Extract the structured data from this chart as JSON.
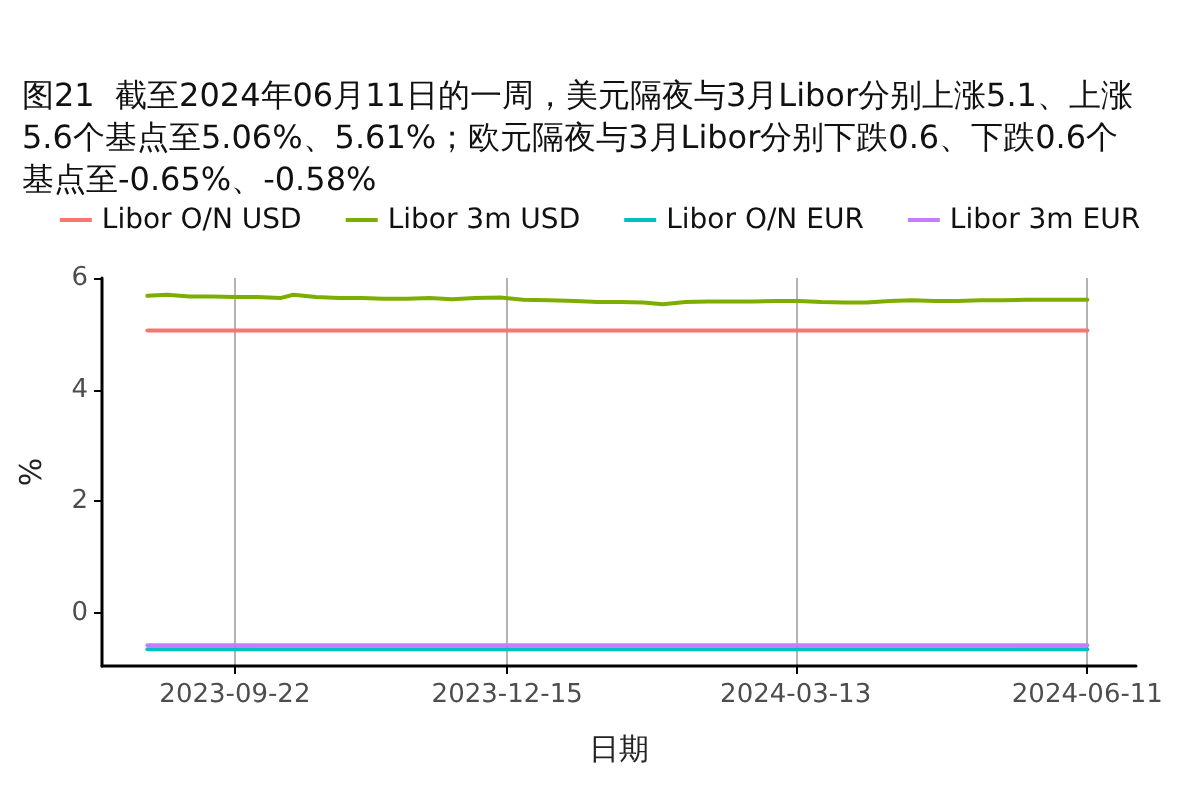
{
  "chart_data": {
    "type": "line",
    "title": "图21  截至2024年06月11日的一周，美元隔夜与3月Libor分别上涨5.1、上涨5.6个基点至5.06%、5.61%；欧元隔夜与3月Libor分别下跌0.6、下跌0.6个基点至-0.65%、-0.58%",
    "xlabel": "日期",
    "ylabel": "%",
    "series": [
      {
        "name": "Libor O/N USD",
        "color": "#f8766d",
        "x": [
          "2023-08-26",
          "2023-12-01",
          "2024-03-01",
          "2024-06-11"
        ],
        "values": [
          5.06,
          5.06,
          5.06,
          5.06
        ]
      },
      {
        "name": "Libor 3m USD",
        "color": "#7cae00",
        "x": [
          "2023-08-26",
          "2023-09-01",
          "2023-09-08",
          "2023-09-15",
          "2023-09-22",
          "2023-09-29",
          "2023-10-06",
          "2023-10-10",
          "2023-10-17",
          "2023-10-24",
          "2023-10-31",
          "2023-11-07",
          "2023-11-14",
          "2023-11-21",
          "2023-11-28",
          "2023-12-05",
          "2023-12-13",
          "2023-12-20",
          "2023-12-28",
          "2024-01-05",
          "2024-01-12",
          "2024-01-19",
          "2024-01-26",
          "2024-02-01",
          "2024-02-08",
          "2024-02-15",
          "2024-02-22",
          "2024-02-29",
          "2024-03-07",
          "2024-03-14",
          "2024-03-21",
          "2024-03-28",
          "2024-04-04",
          "2024-04-11",
          "2024-04-18",
          "2024-04-25",
          "2024-05-02",
          "2024-05-09",
          "2024-05-16",
          "2024-05-23",
          "2024-05-30",
          "2024-06-06",
          "2024-06-11"
        ],
        "values": [
          5.68,
          5.7,
          5.67,
          5.67,
          5.66,
          5.66,
          5.64,
          5.7,
          5.66,
          5.64,
          5.64,
          5.63,
          5.63,
          5.64,
          5.62,
          5.64,
          5.65,
          5.61,
          5.6,
          5.59,
          5.57,
          5.57,
          5.56,
          5.53,
          5.57,
          5.58,
          5.58,
          5.58,
          5.59,
          5.59,
          5.57,
          5.56,
          5.56,
          5.59,
          5.6,
          5.59,
          5.59,
          5.6,
          5.6,
          5.61,
          5.61,
          5.61,
          5.61
        ]
      },
      {
        "name": "Libor O/N EUR",
        "color": "#00bfc4",
        "x": [
          "2023-08-26",
          "2023-12-01",
          "2024-03-01",
          "2024-06-11"
        ],
        "values": [
          -0.65,
          -0.65,
          -0.65,
          -0.65
        ]
      },
      {
        "name": "Libor 3m EUR",
        "color": "#c77cff",
        "x": [
          "2023-08-26",
          "2023-12-01",
          "2024-03-01",
          "2024-06-11"
        ],
        "values": [
          -0.58,
          -0.58,
          -0.58,
          -0.58
        ]
      }
    ],
    "xlim": [
      "2023-08-12",
      "2024-06-26"
    ],
    "xticks": [
      "2023-09-22",
      "2023-12-15",
      "2024-03-13",
      "2024-06-11"
    ],
    "ylim": [
      -0.95,
      6
    ],
    "yticks": [
      0,
      2,
      4,
      6
    ],
    "grid": "x",
    "legend": "top",
    "marker": "none"
  }
}
